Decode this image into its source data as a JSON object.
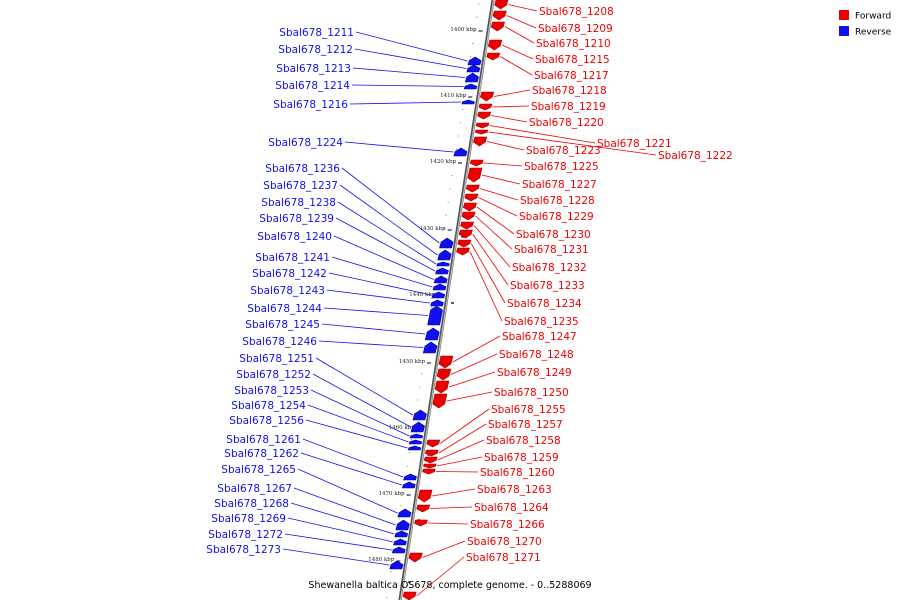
{
  "caption": "Shewanella baltica OS678, complete genome. - 0..5288069",
  "legend": [
    {
      "label": "Forward",
      "color": "#ee0000"
    },
    {
      "label": "Reverse",
      "color": "#1010ee"
    }
  ],
  "colors": {
    "forward": "#ee0000",
    "reverse": "#1010ee",
    "backbone": "#888888"
  },
  "ticks": [
    "1400 kbp",
    "1410 kbp",
    "1420 kbp",
    "1430 kbp",
    "1440 kbp",
    "1450 kbp",
    "1460 kbp",
    "1470 kbp",
    "1480 kbp"
  ],
  "forward_genes": [
    "Sbal678_1208",
    "Sbal678_1209",
    "Sbal678_1210",
    "Sbal678_1215",
    "Sbal678_1217",
    "Sbal678_1218",
    "Sbal678_1219",
    "Sbal678_1220",
    "Sbal678_1221",
    "Sbal678_1222",
    "Sbal678_1223",
    "Sbal678_1225",
    "Sbal678_1227",
    "Sbal678_1228",
    "Sbal678_1229",
    "Sbal678_1230",
    "Sbal678_1231",
    "Sbal678_1232",
    "Sbal678_1233",
    "Sbal678_1234",
    "Sbal678_1235",
    "Sbal678_1247",
    "Sbal678_1248",
    "Sbal678_1249",
    "Sbal678_1250",
    "Sbal678_1255",
    "Sbal678_1257",
    "Sbal678_1258",
    "Sbal678_1259",
    "Sbal678_1260",
    "Sbal678_1263",
    "Sbal678_1264",
    "Sbal678_1266",
    "Sbal678_1270",
    "Sbal678_1271"
  ],
  "reverse_genes": [
    "Sbal678_1211",
    "Sbal678_1212",
    "Sbal678_1213",
    "Sbal678_1214",
    "Sbal678_1216",
    "Sbal678_1224",
    "Sbal678_1236",
    "Sbal678_1237",
    "Sbal678_1238",
    "Sbal678_1239",
    "Sbal678_1240",
    "Sbal678_1241",
    "Sbal678_1242",
    "Sbal678_1243",
    "Sbal678_1244",
    "Sbal678_1245",
    "Sbal678_1246",
    "Sbal678_1251",
    "Sbal678_1252",
    "Sbal678_1253",
    "Sbal678_1254",
    "Sbal678_1256",
    "Sbal678_1261",
    "Sbal678_1262",
    "Sbal678_1265",
    "Sbal678_1267",
    "Sbal678_1268",
    "Sbal678_1269",
    "Sbal678_1272",
    "Sbal678_1273"
  ]
}
